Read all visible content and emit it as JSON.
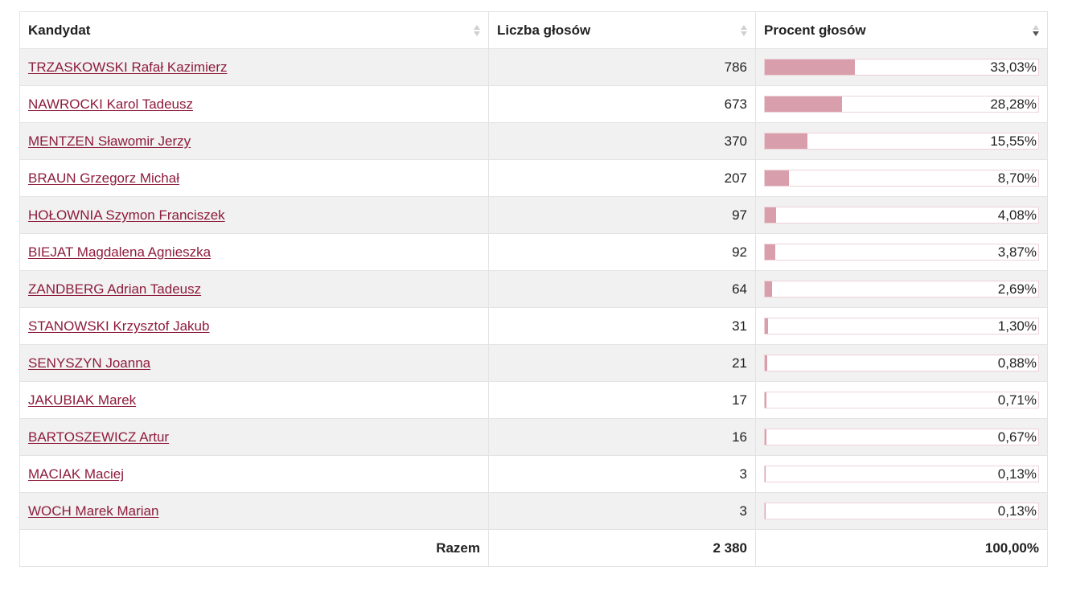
{
  "table": {
    "headers": {
      "candidate": "Kandydat",
      "votes": "Liczba głosów",
      "percent": "Procent głosów"
    },
    "sort": {
      "column": "percent",
      "direction": "descending"
    },
    "rows": [
      {
        "name": "TRZASKOWSKI Rafał Kazimierz",
        "votes": "786",
        "percent": "33,03%",
        "share": 33.03
      },
      {
        "name": "NAWROCKI Karol Tadeusz",
        "votes": "673",
        "percent": "28,28%",
        "share": 28.28
      },
      {
        "name": "MENTZEN Sławomir Jerzy",
        "votes": "370",
        "percent": "15,55%",
        "share": 15.55
      },
      {
        "name": "BRAUN Grzegorz Michał",
        "votes": "207",
        "percent": "8,70%",
        "share": 8.7
      },
      {
        "name": "HOŁOWNIA Szymon Franciszek",
        "votes": "97",
        "percent": "4,08%",
        "share": 4.08
      },
      {
        "name": "BIEJAT Magdalena Agnieszka",
        "votes": "92",
        "percent": "3,87%",
        "share": 3.87
      },
      {
        "name": "ZANDBERG Adrian Tadeusz",
        "votes": "64",
        "percent": "2,69%",
        "share": 2.69
      },
      {
        "name": "STANOWSKI Krzysztof Jakub",
        "votes": "31",
        "percent": "1,30%",
        "share": 1.3
      },
      {
        "name": "SENYSZYN Joanna",
        "votes": "21",
        "percent": "0,88%",
        "share": 0.88
      },
      {
        "name": "JAKUBIAK Marek",
        "votes": "17",
        "percent": "0,71%",
        "share": 0.71
      },
      {
        "name": "BARTOSZEWICZ Artur",
        "votes": "16",
        "percent": "0,67%",
        "share": 0.67
      },
      {
        "name": "MACIAK Maciej",
        "votes": "3",
        "percent": "0,13%",
        "share": 0.13
      },
      {
        "name": "WOCH Marek Marian",
        "votes": "3",
        "percent": "0,13%",
        "share": 0.13
      }
    ],
    "footer": {
      "label": "Razem",
      "votes": "2 380",
      "percent": "100,00%"
    }
  },
  "colors": {
    "link": "#8e1b3c",
    "bar_fill": "#d99eab",
    "row_stripe": "#f1f1f1"
  },
  "icons": {
    "sort_default": "sort-both-icon",
    "sort_active": "sort-descending-icon"
  }
}
